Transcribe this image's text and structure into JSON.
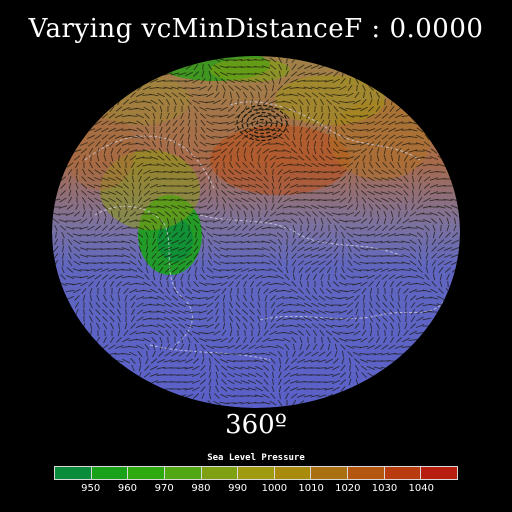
{
  "title": "Varying vcMinDistanceF : 0.0000",
  "angle_label": "360º",
  "legend": {
    "title": "Sea Level Pressure",
    "levels": [
      "950",
      "960",
      "970",
      "980",
      "990",
      "1000",
      "1010",
      "1020",
      "1030",
      "1040"
    ],
    "colors": [
      "#0a8c3c",
      "#1aa11a",
      "#2eaa10",
      "#52a814",
      "#7ea012",
      "#a09a10",
      "#a88a0c",
      "#a87010",
      "#b25610",
      "#b83c10",
      "#b81e10"
    ]
  },
  "map": {
    "projection": "orthographic",
    "globe_colors": {
      "ocean_south": "#5a60c8",
      "mid": "#7878a8",
      "north": "#a07850",
      "land_outline": "#d8d8e8",
      "vector": "#1a1a10"
    }
  }
}
